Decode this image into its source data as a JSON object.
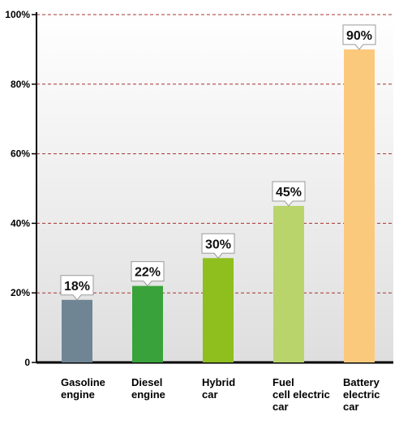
{
  "chart_data": {
    "type": "bar",
    "categories": [
      [
        "Gasoline",
        "engine"
      ],
      [
        "Diesel",
        "engine"
      ],
      [
        "Hybrid",
        "car"
      ],
      [
        "Fuel",
        "cell electric",
        "car"
      ],
      [
        "Battery",
        "electric",
        "car"
      ]
    ],
    "values": [
      18,
      22,
      30,
      45,
      90
    ],
    "data_labels": [
      "18%",
      "22%",
      "30%",
      "45%",
      "90%"
    ],
    "bar_colors": [
      "#6f8594",
      "#3aa23a",
      "#8fbe1f",
      "#b8d46a",
      "#fbc97c"
    ],
    "ylim": [
      0,
      100
    ],
    "yticks": [
      0,
      20,
      40,
      60,
      80,
      100
    ],
    "ytick_labels": [
      "0",
      "20%",
      "40%",
      "60%",
      "80%",
      "100%"
    ],
    "grid": "dashed horizontal at 20% intervals",
    "grid_color": "#a83232",
    "title": "",
    "xlabel": "",
    "ylabel": ""
  }
}
